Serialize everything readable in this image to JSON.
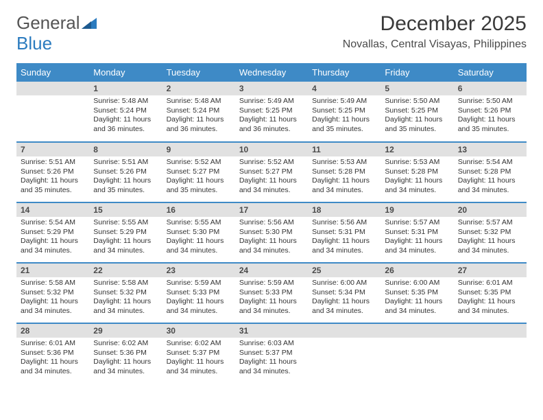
{
  "brand": {
    "part1": "General",
    "part2": "Blue"
  },
  "title": "December 2025",
  "location": "Novallas, Central Visayas, Philippines",
  "colors": {
    "header_bg": "#3e8ac6",
    "daynum_bg": "#e1e1e1",
    "row_divider": "#3e8ac6",
    "title_color": "#3a3a3a",
    "text_color": "#333333"
  },
  "dayHeaders": [
    "Sunday",
    "Monday",
    "Tuesday",
    "Wednesday",
    "Thursday",
    "Friday",
    "Saturday"
  ],
  "weeks": [
    [
      {
        "day": "",
        "sunrise": "",
        "sunset": "",
        "daylight": ""
      },
      {
        "day": "1",
        "sunrise": "Sunrise: 5:48 AM",
        "sunset": "Sunset: 5:24 PM",
        "daylight": "Daylight: 11 hours and 36 minutes."
      },
      {
        "day": "2",
        "sunrise": "Sunrise: 5:48 AM",
        "sunset": "Sunset: 5:24 PM",
        "daylight": "Daylight: 11 hours and 36 minutes."
      },
      {
        "day": "3",
        "sunrise": "Sunrise: 5:49 AM",
        "sunset": "Sunset: 5:25 PM",
        "daylight": "Daylight: 11 hours and 36 minutes."
      },
      {
        "day": "4",
        "sunrise": "Sunrise: 5:49 AM",
        "sunset": "Sunset: 5:25 PM",
        "daylight": "Daylight: 11 hours and 35 minutes."
      },
      {
        "day": "5",
        "sunrise": "Sunrise: 5:50 AM",
        "sunset": "Sunset: 5:25 PM",
        "daylight": "Daylight: 11 hours and 35 minutes."
      },
      {
        "day": "6",
        "sunrise": "Sunrise: 5:50 AM",
        "sunset": "Sunset: 5:26 PM",
        "daylight": "Daylight: 11 hours and 35 minutes."
      }
    ],
    [
      {
        "day": "7",
        "sunrise": "Sunrise: 5:51 AM",
        "sunset": "Sunset: 5:26 PM",
        "daylight": "Daylight: 11 hours and 35 minutes."
      },
      {
        "day": "8",
        "sunrise": "Sunrise: 5:51 AM",
        "sunset": "Sunset: 5:26 PM",
        "daylight": "Daylight: 11 hours and 35 minutes."
      },
      {
        "day": "9",
        "sunrise": "Sunrise: 5:52 AM",
        "sunset": "Sunset: 5:27 PM",
        "daylight": "Daylight: 11 hours and 35 minutes."
      },
      {
        "day": "10",
        "sunrise": "Sunrise: 5:52 AM",
        "sunset": "Sunset: 5:27 PM",
        "daylight": "Daylight: 11 hours and 34 minutes."
      },
      {
        "day": "11",
        "sunrise": "Sunrise: 5:53 AM",
        "sunset": "Sunset: 5:28 PM",
        "daylight": "Daylight: 11 hours and 34 minutes."
      },
      {
        "day": "12",
        "sunrise": "Sunrise: 5:53 AM",
        "sunset": "Sunset: 5:28 PM",
        "daylight": "Daylight: 11 hours and 34 minutes."
      },
      {
        "day": "13",
        "sunrise": "Sunrise: 5:54 AM",
        "sunset": "Sunset: 5:28 PM",
        "daylight": "Daylight: 11 hours and 34 minutes."
      }
    ],
    [
      {
        "day": "14",
        "sunrise": "Sunrise: 5:54 AM",
        "sunset": "Sunset: 5:29 PM",
        "daylight": "Daylight: 11 hours and 34 minutes."
      },
      {
        "day": "15",
        "sunrise": "Sunrise: 5:55 AM",
        "sunset": "Sunset: 5:29 PM",
        "daylight": "Daylight: 11 hours and 34 minutes."
      },
      {
        "day": "16",
        "sunrise": "Sunrise: 5:55 AM",
        "sunset": "Sunset: 5:30 PM",
        "daylight": "Daylight: 11 hours and 34 minutes."
      },
      {
        "day": "17",
        "sunrise": "Sunrise: 5:56 AM",
        "sunset": "Sunset: 5:30 PM",
        "daylight": "Daylight: 11 hours and 34 minutes."
      },
      {
        "day": "18",
        "sunrise": "Sunrise: 5:56 AM",
        "sunset": "Sunset: 5:31 PM",
        "daylight": "Daylight: 11 hours and 34 minutes."
      },
      {
        "day": "19",
        "sunrise": "Sunrise: 5:57 AM",
        "sunset": "Sunset: 5:31 PM",
        "daylight": "Daylight: 11 hours and 34 minutes."
      },
      {
        "day": "20",
        "sunrise": "Sunrise: 5:57 AM",
        "sunset": "Sunset: 5:32 PM",
        "daylight": "Daylight: 11 hours and 34 minutes."
      }
    ],
    [
      {
        "day": "21",
        "sunrise": "Sunrise: 5:58 AM",
        "sunset": "Sunset: 5:32 PM",
        "daylight": "Daylight: 11 hours and 34 minutes."
      },
      {
        "day": "22",
        "sunrise": "Sunrise: 5:58 AM",
        "sunset": "Sunset: 5:32 PM",
        "daylight": "Daylight: 11 hours and 34 minutes."
      },
      {
        "day": "23",
        "sunrise": "Sunrise: 5:59 AM",
        "sunset": "Sunset: 5:33 PM",
        "daylight": "Daylight: 11 hours and 34 minutes."
      },
      {
        "day": "24",
        "sunrise": "Sunrise: 5:59 AM",
        "sunset": "Sunset: 5:33 PM",
        "daylight": "Daylight: 11 hours and 34 minutes."
      },
      {
        "day": "25",
        "sunrise": "Sunrise: 6:00 AM",
        "sunset": "Sunset: 5:34 PM",
        "daylight": "Daylight: 11 hours and 34 minutes."
      },
      {
        "day": "26",
        "sunrise": "Sunrise: 6:00 AM",
        "sunset": "Sunset: 5:35 PM",
        "daylight": "Daylight: 11 hours and 34 minutes."
      },
      {
        "day": "27",
        "sunrise": "Sunrise: 6:01 AM",
        "sunset": "Sunset: 5:35 PM",
        "daylight": "Daylight: 11 hours and 34 minutes."
      }
    ],
    [
      {
        "day": "28",
        "sunrise": "Sunrise: 6:01 AM",
        "sunset": "Sunset: 5:36 PM",
        "daylight": "Daylight: 11 hours and 34 minutes."
      },
      {
        "day": "29",
        "sunrise": "Sunrise: 6:02 AM",
        "sunset": "Sunset: 5:36 PM",
        "daylight": "Daylight: 11 hours and 34 minutes."
      },
      {
        "day": "30",
        "sunrise": "Sunrise: 6:02 AM",
        "sunset": "Sunset: 5:37 PM",
        "daylight": "Daylight: 11 hours and 34 minutes."
      },
      {
        "day": "31",
        "sunrise": "Sunrise: 6:03 AM",
        "sunset": "Sunset: 5:37 PM",
        "daylight": "Daylight: 11 hours and 34 minutes."
      },
      {
        "day": "",
        "sunrise": "",
        "sunset": "",
        "daylight": ""
      },
      {
        "day": "",
        "sunrise": "",
        "sunset": "",
        "daylight": ""
      },
      {
        "day": "",
        "sunrise": "",
        "sunset": "",
        "daylight": ""
      }
    ]
  ]
}
